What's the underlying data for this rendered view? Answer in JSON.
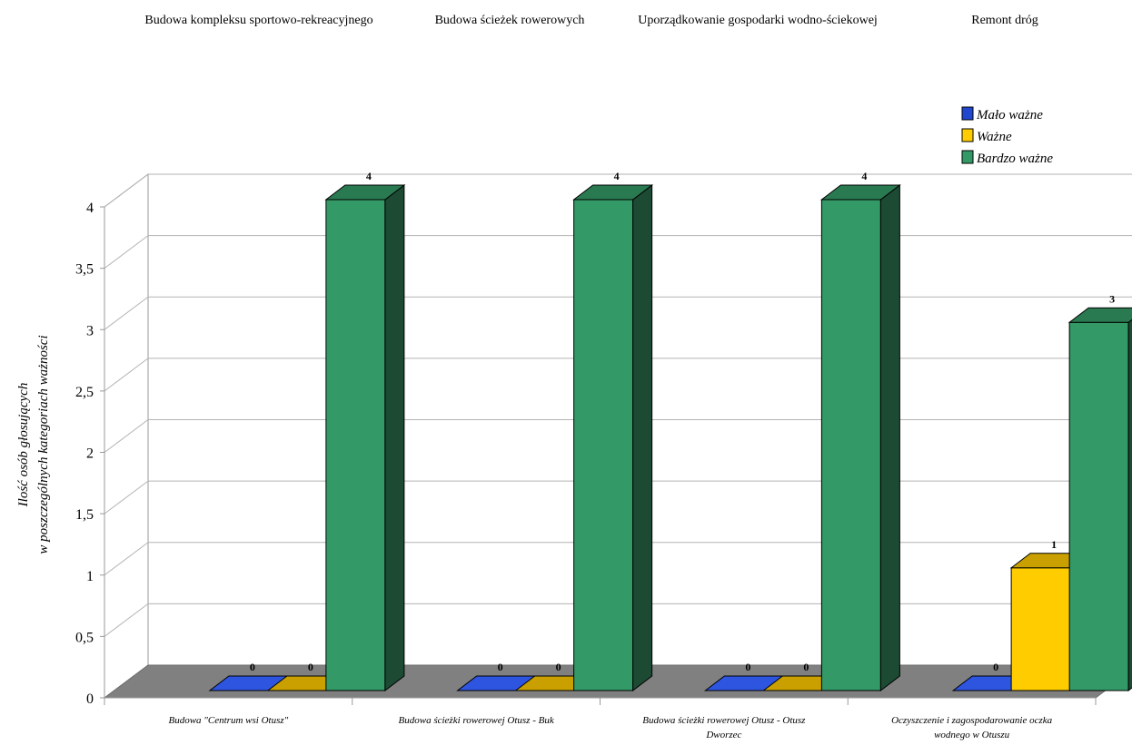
{
  "chart_data": {
    "type": "bar",
    "top_categories": [
      "Budowa kompleksu sportowo-rekreacyjnego",
      "Budowa ścieżek rowerowych",
      "Uporządkowanie gospodarki wodno-ściekowej",
      "Remont dróg"
    ],
    "categories": [
      [
        "Budowa \"Centrum wsi Otusz\""
      ],
      [
        "Budowa ścieżki rowerowej Otusz - Buk"
      ],
      [
        "Budowa ścieżki rowerowej Otusz - Otusz",
        "Dworzec"
      ],
      [
        "Oczyszczenie i zagospodarowanie oczka",
        "wodnego w Otuszu"
      ]
    ],
    "series": [
      {
        "name": "Mało ważne",
        "values": [
          0,
          0,
          0,
          0
        ],
        "color": "#2146d0",
        "side": "#1a38a6",
        "top": "#2e55e0"
      },
      {
        "name": "Ważne",
        "values": [
          0,
          0,
          0,
          1
        ],
        "color": "#ffcc00",
        "side": "#c9a000",
        "top": "#caa000"
      },
      {
        "name": "Bardzo ważne",
        "values": [
          4,
          4,
          4,
          3
        ],
        "color": "#339966",
        "side": "#1c4a33",
        "top": "#2a7a51"
      }
    ],
    "ylabel": [
      "Ilość osób głosujących",
      "w poszczególnych kategoriach ważności"
    ],
    "ylim": [
      0,
      4
    ],
    "yticks": [
      "0",
      "0,5",
      "1",
      "1,5",
      "2",
      "2,5",
      "3",
      "3,5",
      "4"
    ],
    "grid": true,
    "legend": "top-right",
    "floor_color": "#808080"
  }
}
